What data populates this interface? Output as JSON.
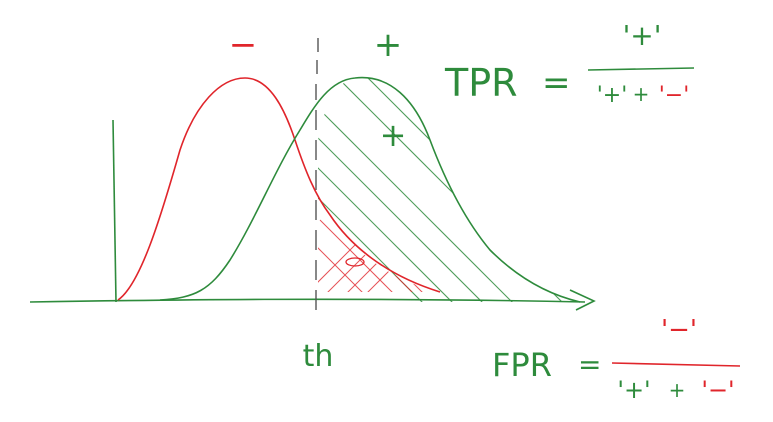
{
  "colors": {
    "positive": "#2e8b3c",
    "negative": "#e0252b",
    "background": "#ffffff"
  },
  "labels": {
    "negative_sign": "−",
    "positive_sign": "+",
    "positive_area_sign": "+",
    "threshold": "th"
  },
  "formulas": {
    "tpr": {
      "name": "TPR",
      "equals": "=",
      "numerator": "'+'",
      "denominator_left": "'+'",
      "denominator_plus": "+",
      "denominator_right": "'−'"
    },
    "fpr": {
      "name": "FPR",
      "equals": "=",
      "numerator": "'−'",
      "denominator_left": "'+'",
      "denominator_plus": "+",
      "denominator_right": "'−'"
    }
  }
}
